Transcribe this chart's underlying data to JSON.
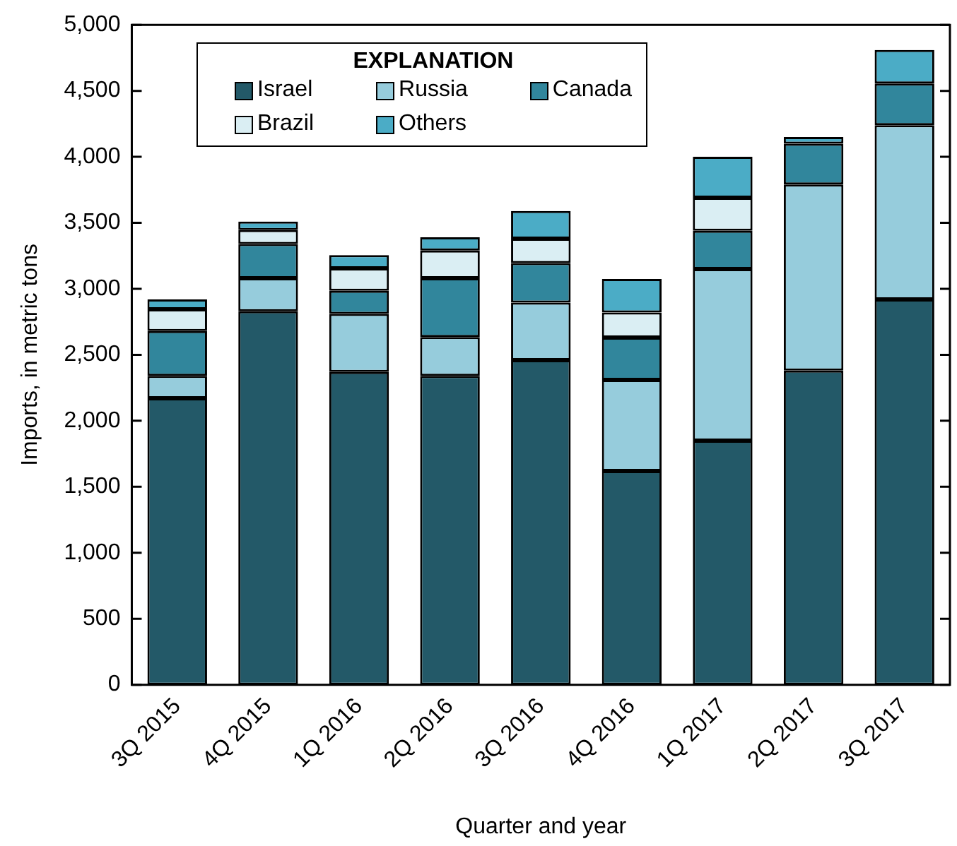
{
  "chart_data": {
    "type": "bar",
    "stacked": true,
    "xlabel": "Quarter and year",
    "ylabel": "Imports, in metric tons",
    "legend_title": "EXPLANATION",
    "legend": "top left",
    "grid": false,
    "categories": [
      "3Q 2015",
      "4Q 2015",
      "1Q 2016",
      "2Q 2016",
      "3Q 2016",
      "4Q 2016",
      "1Q 2017",
      "2Q 2017",
      "3Q 2017"
    ],
    "ylim": [
      0,
      5000
    ],
    "yticks": [
      {
        "value": 0,
        "label": "0"
      },
      {
        "value": 500,
        "label": "500"
      },
      {
        "value": 1000,
        "label": "1,000"
      },
      {
        "value": 1500,
        "label": "1,500"
      },
      {
        "value": 2000,
        "label": "2,000"
      },
      {
        "value": 2500,
        "label": "2,500"
      },
      {
        "value": 3000,
        "label": "3,000"
      },
      {
        "value": 3500,
        "label": "3,500"
      },
      {
        "value": 4000,
        "label": "4,000"
      },
      {
        "value": 4500,
        "label": "4,500"
      },
      {
        "value": 5000,
        "label": "5,000"
      }
    ],
    "series": [
      {
        "name": "Israel",
        "color": "#235968",
        "values": [
          2170,
          2830,
          2370,
          2340,
          2460,
          1620,
          1850,
          2380,
          2920
        ]
      },
      {
        "name": "Russia",
        "color": "#96ccdc",
        "values": [
          170,
          250,
          440,
          295,
          435,
          690,
          1300,
          1410,
          1320
        ]
      },
      {
        "name": "Canada",
        "color": "#31869c",
        "values": [
          340,
          260,
          175,
          445,
          300,
          320,
          290,
          310,
          315
        ]
      },
      {
        "name": "Brazil",
        "color": "#daeef3",
        "values": [
          165,
          105,
          170,
          210,
          185,
          190,
          250,
          0,
          0
        ]
      },
      {
        "name": "Others",
        "color": "#4bacc6",
        "values": [
          75,
          65,
          100,
          100,
          210,
          255,
          310,
          50,
          255
        ]
      }
    ]
  }
}
